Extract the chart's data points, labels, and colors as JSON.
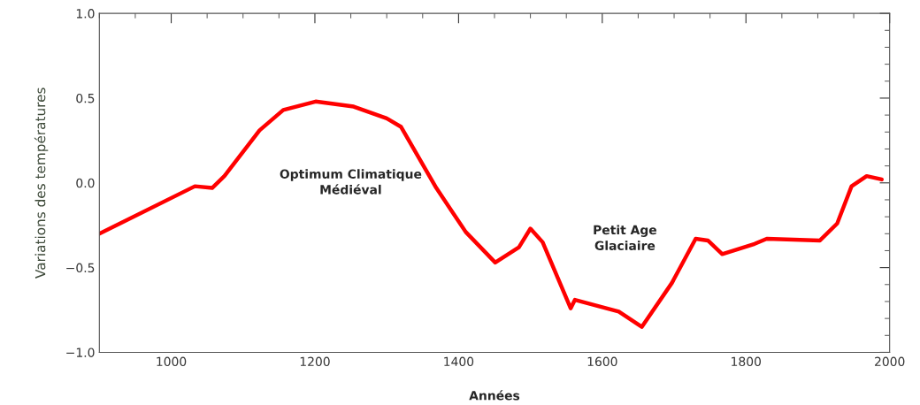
{
  "chart_data": {
    "type": "line",
    "xlabel": "Années",
    "ylabel": "Variations des températures",
    "x": [
      900,
      1033,
      1057,
      1074,
      1123,
      1156,
      1201,
      1254,
      1300,
      1320,
      1369,
      1410,
      1451,
      1484,
      1500,
      1517,
      1556,
      1562,
      1623,
      1655,
      1697,
      1730,
      1747,
      1767,
      1812,
      1829,
      1903,
      1927,
      1947,
      1968,
      1989
    ],
    "series": [
      {
        "color": "#ff0000",
        "values": [
          -0.3,
          -0.02,
          -0.03,
          0.04,
          0.31,
          0.43,
          0.48,
          0.45,
          0.38,
          0.33,
          -0.03,
          -0.29,
          -0.47,
          -0.38,
          -0.27,
          -0.35,
          -0.74,
          -0.69,
          -0.76,
          -0.85,
          -0.59,
          -0.33,
          -0.34,
          -0.42,
          -0.36,
          -0.33,
          -0.34,
          -0.24,
          -0.02,
          0.04,
          0.02
        ]
      }
    ],
    "xlim": [
      900,
      2000
    ],
    "xticks": [
      1000,
      1200,
      1400,
      1600,
      1800,
      2000
    ],
    "ylim": [
      -1.0,
      1.0
    ],
    "yticks": [
      {
        "value": -1.0,
        "label": "−1.0"
      },
      {
        "value": -0.5,
        "label": "−0.5"
      },
      {
        "value": 0.0,
        "label": "0.0"
      },
      {
        "value": 0.5,
        "label": "0.5"
      },
      {
        "value": 1.0,
        "label": "1.0"
      }
    ],
    "annotations": [
      "Optimum Climatique\nMédiéval",
      "Petit Age\nGlaciaire"
    ],
    "grid": false,
    "legend": false,
    "marker": "none",
    "line_style": "solid"
  }
}
